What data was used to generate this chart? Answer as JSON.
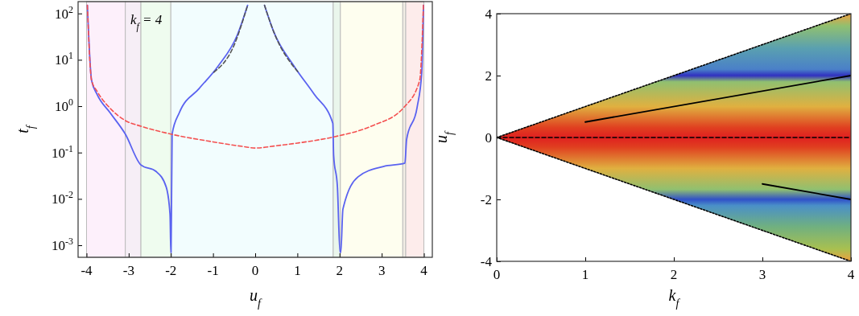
{
  "chart_data": [
    {
      "type": "line",
      "xlabel": "u$_{f}$",
      "ylabel": "t$_{f}$",
      "log": "y",
      "xlim": [
        -4.2,
        4.2
      ],
      "ylim": [
        0.00055,
        180
      ],
      "xticks": [
        -4,
        -3,
        -2,
        -1,
        0,
        1,
        2,
        3,
        4
      ],
      "yticks": [
        {
          "value": 0.001,
          "label": "10$^{-3}$"
        },
        {
          "value": 0.01,
          "label": "10$^{-2}$"
        },
        {
          "value": 0.1,
          "label": "10$^{-1}$"
        },
        {
          "value": 1,
          "label": "10$^{0}$"
        },
        {
          "value": 10,
          "label": "10$^{1}$"
        },
        {
          "value": 100,
          "label": "10$^{2}$"
        }
      ],
      "annotations": [
        "k$_{f}$ = 4"
      ],
      "bands": [
        {
          "axis": "x",
          "from": -4,
          "to": -3.08,
          "color": "#fdf0fb"
        },
        {
          "axis": "x",
          "from": -3.08,
          "to": -2.71,
          "color": "#f6eef6"
        },
        {
          "axis": "x",
          "from": -2.71,
          "to": -2,
          "color": "#effcef"
        },
        {
          "axis": "x",
          "from": -2,
          "to": 1.85,
          "color": "#f2fdfe"
        },
        {
          "axis": "x",
          "from": 1.85,
          "to": 2.02,
          "color": "#eaf6ec"
        },
        {
          "axis": "x",
          "from": 2.02,
          "to": 3.5,
          "color": "#fefeef"
        },
        {
          "axis": "x",
          "from": 3.5,
          "to": 3.57,
          "color": "#f3efe6"
        },
        {
          "axis": "x",
          "from": 3.57,
          "to": 4,
          "color": "#fdeceb"
        }
      ],
      "series": [
        {
          "color": "#5a62f0",
          "line_style": "solid",
          "x": [
            -3.98,
            -3.88,
            -3.75,
            -3.44,
            -3.08,
            -2.71,
            -2.35,
            -2.11,
            -2.02,
            -2.0,
            -1.995,
            -1.97,
            -1.8,
            -1.33,
            -0.89,
            -0.42,
            -0.18,
            0,
            0.22,
            0.44,
            0.93,
            1.4,
            1.84,
            1.86,
            1.95,
            2.01,
            2.03,
            2.08,
            2.44,
            3.04,
            3.55,
            3.59,
            3.84,
            3.95,
            3.99
          ],
          "values": [
            150,
            3.6,
            1.8,
            0.72,
            0.25,
            0.054,
            0.039,
            0.018,
            0.0046,
            0.0007,
            0.0007,
            0.25,
            0.72,
            2.4,
            7.1,
            35,
            150,
            null,
            150,
            40,
            7.1,
            1.8,
            0.43,
            0.087,
            0.018,
            0.0007,
            0.0007,
            0.006,
            0.03,
            0.05,
            0.059,
            0.19,
            0.95,
            5.4,
            150
          ]
        },
        {
          "color": "#f45050",
          "line_style": "dashed",
          "x": [
            -3.98,
            -3.88,
            -3.75,
            -3.44,
            -3.08,
            -2.71,
            -2,
            -1,
            -0.29,
            0,
            0.5,
            1,
            1.89,
            2.75,
            3.53,
            3.9,
            3.99
          ],
          "values": [
            150,
            3.6,
            2.1,
            0.9,
            0.49,
            0.37,
            0.25,
            0.17,
            0.135,
            0.125,
            0.14,
            0.16,
            0.22,
            0.37,
            0.95,
            3.6,
            150
          ]
        },
        {
          "color": "#555555",
          "line_style": "dashed",
          "x": [
            -0.98,
            -0.53,
            -0.18,
            0,
            0.22,
            0.44,
            1.02
          ],
          "values": [
            5.4,
            18,
            150,
            null,
            150,
            40,
            5.4
          ]
        }
      ]
    },
    {
      "type": "line",
      "xlabel": "k$_{f}$",
      "ylabel": "u$_{f}$",
      "xlim": [
        0,
        4
      ],
      "ylim": [
        -4,
        4
      ],
      "xticks": [
        0,
        1,
        2,
        3,
        4
      ],
      "yticks": [
        -4,
        -2,
        0,
        2,
        4
      ],
      "series": [
        {
          "color": "#000000",
          "line_style": "dotted",
          "x": [
            0,
            4
          ],
          "values": [
            0,
            4
          ]
        },
        {
          "color": "#000000",
          "line_style": "dotted",
          "x": [
            0,
            4
          ],
          "values": [
            0,
            -4
          ]
        },
        {
          "color": "#000000",
          "line_style": "dashed",
          "x": [
            0,
            4
          ],
          "values": [
            0,
            0
          ],
          "lower": [
            0,
            -4
          ],
          "upper": [
            0,
            4
          ]
        },
        {
          "color": "#000000",
          "line_style": "solid",
          "x": [
            1,
            4
          ],
          "values": [
            0.5,
            2
          ]
        },
        {
          "color": "#000000",
          "line_style": "solid",
          "x": [
            3,
            4
          ],
          "values": [
            -1.5,
            -2
          ]
        }
      ]
    }
  ]
}
